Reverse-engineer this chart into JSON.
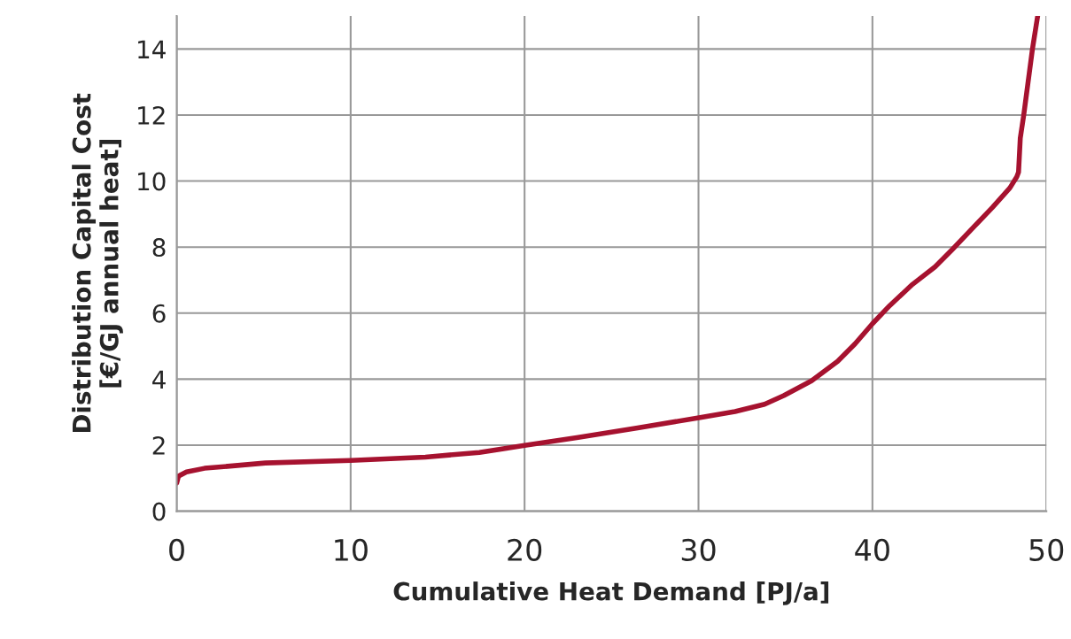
{
  "chart_data": {
    "type": "line",
    "xlabel": "Cumulative Heat Demand [PJ/a]",
    "ylabel": "Distribution Capital Cost\n[€/GJ annual heat]",
    "xlim": [
      0,
      50
    ],
    "ylim": [
      0,
      15
    ],
    "xticks": [
      0,
      10,
      20,
      30,
      40,
      50
    ],
    "yticks": [
      0,
      2,
      4,
      6,
      8,
      10,
      12,
      14
    ],
    "grid": true,
    "legend": false,
    "marker": "none",
    "line_style": "solid",
    "series": [
      {
        "color": "#a6122f",
        "x": [
          0,
          0.1,
          0.56,
          1.6,
          5.1,
          10,
          14.3,
          17.4,
          20,
          23,
          26.5,
          30.1,
          32.1,
          33.8,
          34.9,
          36.5,
          38,
          39,
          40,
          41,
          42.3,
          43.6,
          44.6,
          45.9,
          46.9,
          47.9,
          48.3,
          48.4,
          48.5,
          48.7,
          49.2,
          49.5
        ],
        "values": [
          0.85,
          1.06,
          1.19,
          1.3,
          1.46,
          1.54,
          1.64,
          1.78,
          1.99,
          2.23,
          2.52,
          2.84,
          3.02,
          3.24,
          3.5,
          3.95,
          4.54,
          5.07,
          5.68,
          6.23,
          6.87,
          7.4,
          7.93,
          8.65,
          9.2,
          9.79,
          10.13,
          10.27,
          11.3,
          12,
          14,
          15
        ]
      }
    ]
  }
}
